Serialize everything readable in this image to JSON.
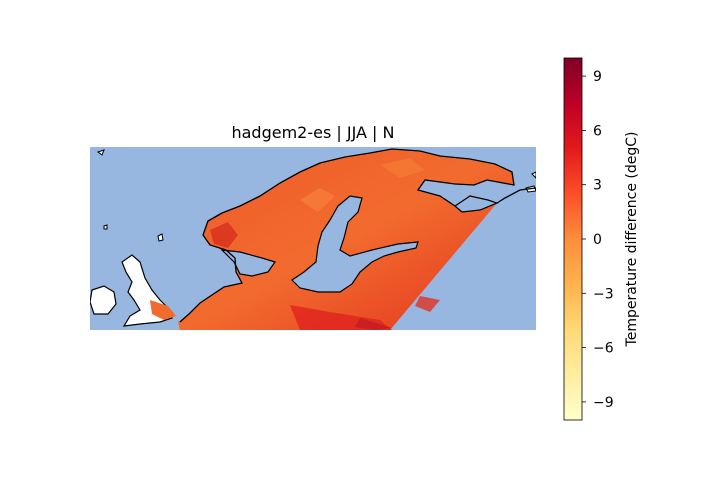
{
  "map": {
    "title": "hadgem2-es | JJA | N",
    "ocean_color": "#97b6e0",
    "nodata_land_color": "#ffffff",
    "coastline_color": "#000000"
  },
  "colorbar": {
    "label": "Temperature difference (degC)",
    "colormap": "YlOrRd",
    "range": [
      -10,
      10
    ],
    "ticks": [
      "9",
      "6",
      "3",
      "0",
      "−3",
      "−6",
      "−9"
    ],
    "tick_values": [
      9,
      6,
      3,
      0,
      -3,
      -6,
      -9
    ],
    "stops": [
      "#ffffcc",
      "#ffeda0",
      "#fed976",
      "#feb24c",
      "#fd8d3c",
      "#fc4e2a",
      "#e31a1c",
      "#bd0026",
      "#800026"
    ]
  },
  "field": {
    "base_color": "#f0592b",
    "northwest_color": "#e8452a",
    "southeast_color": "#e42a1f",
    "warm_patch_color": "#c81e22"
  }
}
